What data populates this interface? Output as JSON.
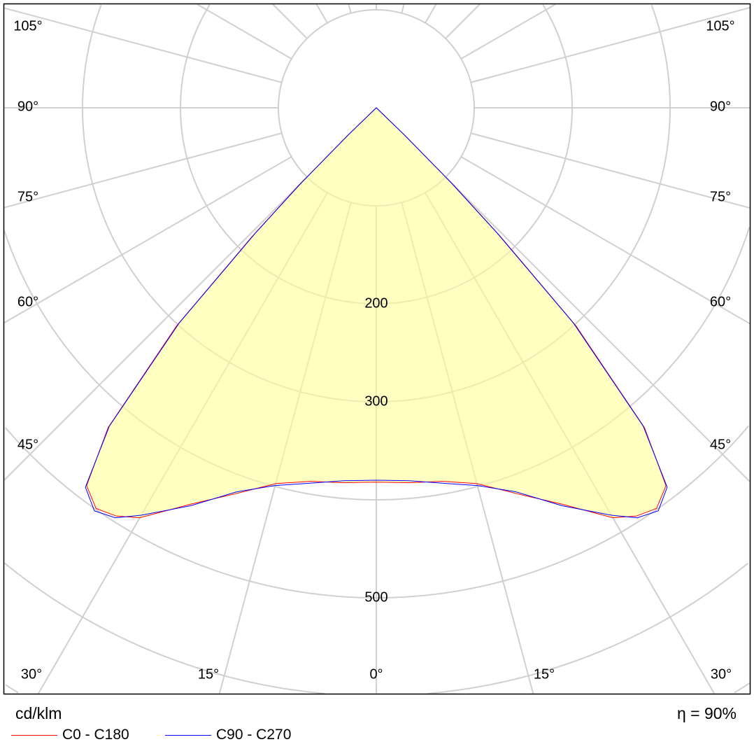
{
  "chart_data": {
    "type": "polar",
    "title": "",
    "unit": "cd/klm",
    "efficiency": "η = 90%",
    "radial_ticks": [
      200,
      300,
      500
    ],
    "radial_grid": [
      100,
      200,
      300,
      400,
      500,
      600,
      700,
      800
    ],
    "angle_labels_bottom": [
      "30°",
      "15°",
      "0°",
      "15°",
      "30°"
    ],
    "angle_labels_side": [
      "105°",
      "90°",
      "75°",
      "60°",
      "45°"
    ],
    "fill_color": "#ffff99",
    "angles": [
      0,
      5,
      10,
      15,
      20,
      25,
      30,
      32.5,
      35,
      37.5,
      40,
      42.5,
      44,
      45,
      46,
      47
    ],
    "series": [
      {
        "name": "C0 - C180",
        "color": "#ff0000",
        "values": [
          382,
          384,
          387,
          397,
          419,
          446,
          483,
          494,
          499,
          486,
          426,
          302,
          182,
          112,
          42,
          0
        ]
      },
      {
        "name": "C90 - C270",
        "color": "#0000ff",
        "values": [
          380,
          382,
          389,
          399,
          417,
          448,
          480,
          496,
          502,
          488,
          424,
          298,
          178,
          108,
          38,
          0
        ]
      }
    ]
  }
}
